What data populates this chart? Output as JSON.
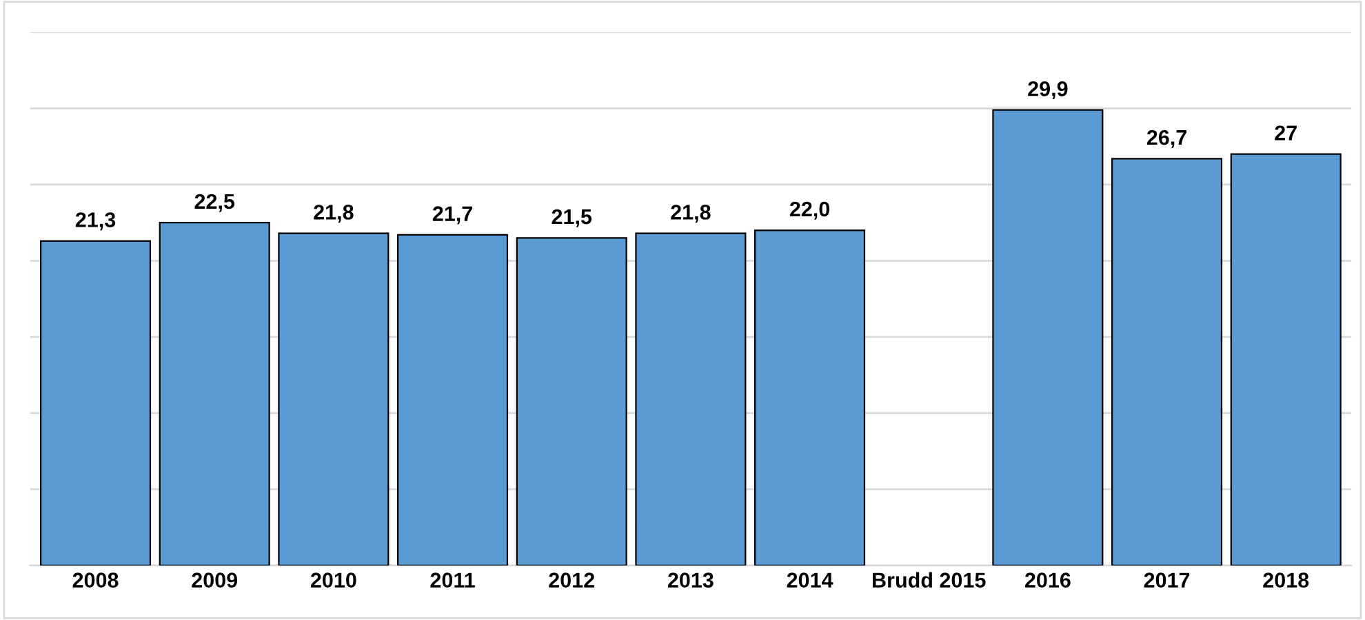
{
  "chart_data": {
    "type": "bar",
    "categories": [
      "2008",
      "2009",
      "2010",
      "2011",
      "2012",
      "2013",
      "2014",
      "Brudd 2015",
      "2016",
      "2017",
      "2018"
    ],
    "values": [
      21.3,
      22.5,
      21.8,
      21.7,
      21.5,
      21.8,
      22.0,
      null,
      29.9,
      26.7,
      27
    ],
    "value_labels": [
      "21,3",
      "22,5",
      "21,8",
      "21,7",
      "21,5",
      "21,8",
      "22,0",
      null,
      "29,9",
      "26,7",
      "27"
    ],
    "color": "#5b9bd5",
    "ylim": [
      0,
      35
    ],
    "yticks": [
      {
        "value": 0,
        "label": null
      },
      {
        "value": 5,
        "label": null
      },
      {
        "value": 10,
        "label": null
      },
      {
        "value": 15,
        "label": null
      },
      {
        "value": 20,
        "label": null
      },
      {
        "value": 25,
        "label": null
      },
      {
        "value": 30,
        "label": null
      },
      {
        "value": 35,
        "label": null
      }
    ],
    "tick_labels": "x",
    "grid": "y"
  }
}
